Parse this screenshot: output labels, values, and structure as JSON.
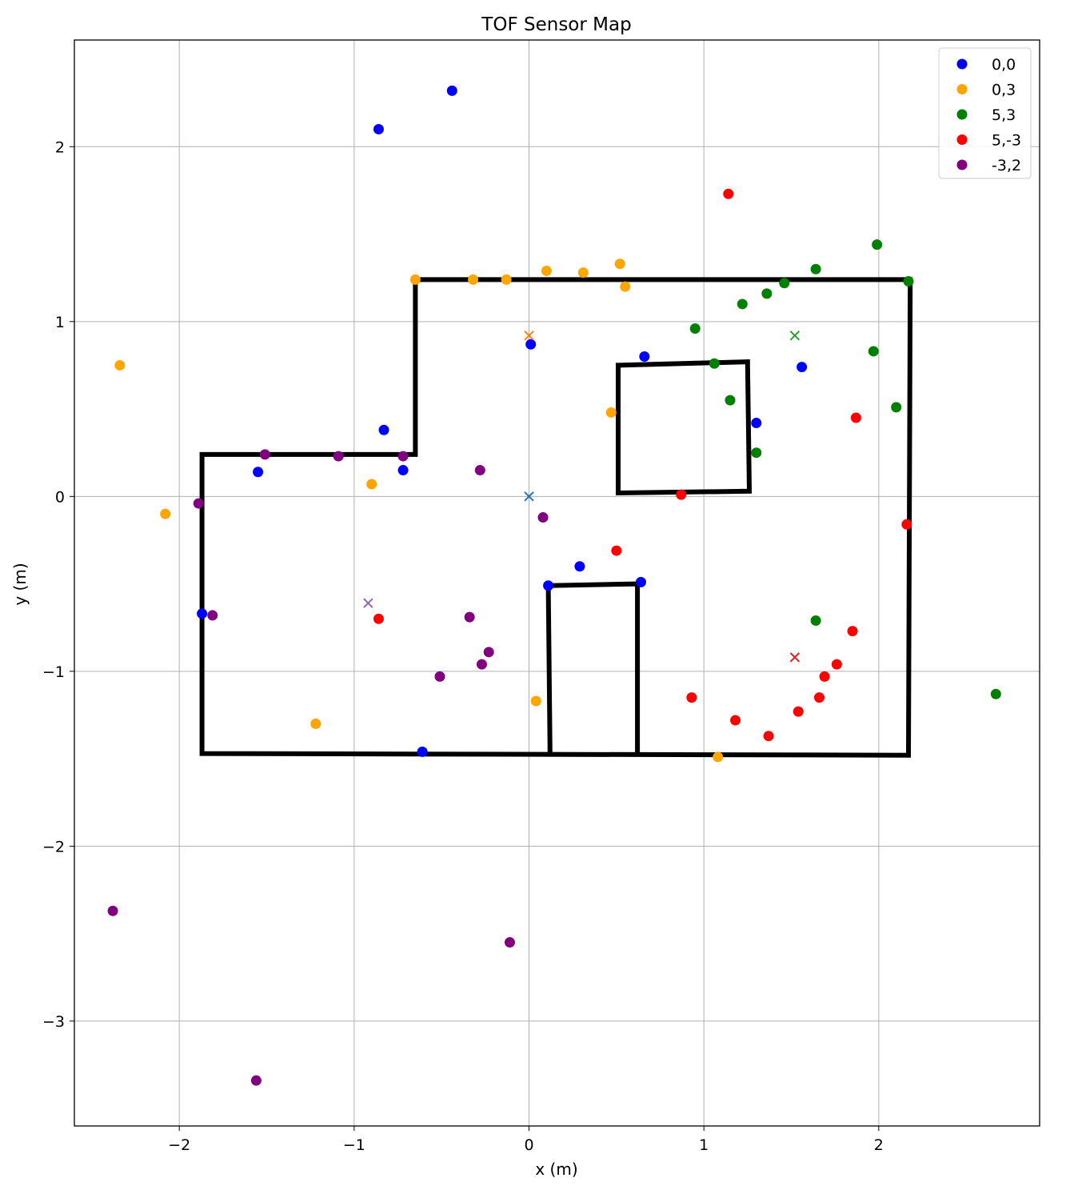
{
  "chart_data": {
    "type": "scatter",
    "title": "TOF Sensor Map",
    "xlabel": "x (m)",
    "ylabel": "y (m)",
    "xlim": [
      -2.6,
      2.92
    ],
    "ylim": [
      -3.6,
      2.61
    ],
    "xticks": [
      -2,
      -1,
      0,
      1,
      2
    ],
    "yticks": [
      2,
      1,
      0,
      -1,
      -2,
      -3
    ],
    "xtick_labels": [
      "−2",
      "−1",
      "0",
      "1",
      "2"
    ],
    "ytick_labels": [
      "2",
      "1",
      "0",
      "−1",
      "−2",
      "−3"
    ],
    "grid": true,
    "legend_position": "top-right",
    "walls": [
      [
        [
          -1.87,
          -1.47
        ],
        [
          -1.87,
          0.24
        ],
        [
          -0.65,
          0.24
        ],
        [
          -0.65,
          1.24
        ],
        [
          2.18,
          1.24
        ],
        [
          2.17,
          -1.48
        ],
        [
          -1.87,
          -1.47
        ]
      ],
      [
        [
          0.51,
          0.75
        ],
        [
          1.25,
          0.77
        ],
        [
          1.26,
          0.03
        ],
        [
          0.51,
          0.02
        ],
        [
          0.51,
          0.75
        ]
      ],
      [
        [
          0.12,
          -1.47
        ],
        [
          0.11,
          -0.51
        ],
        [
          0.62,
          -0.5
        ],
        [
          0.62,
          -1.47
        ]
      ]
    ],
    "series": [
      {
        "name": "0,0",
        "color": "#0000ff",
        "sensor": [
          0,
          0
        ],
        "sensor_color": "#1f77b4",
        "points": [
          [
            -0.44,
            2.32
          ],
          [
            -0.86,
            2.1
          ],
          [
            0.01,
            0.87
          ],
          [
            0.66,
            0.8
          ],
          [
            1.56,
            0.74
          ],
          [
            1.3,
            0.42
          ],
          [
            -0.83,
            0.38
          ],
          [
            -1.55,
            0.14
          ],
          [
            -0.72,
            0.15
          ],
          [
            0.29,
            -0.4
          ],
          [
            0.11,
            -0.51
          ],
          [
            0.64,
            -0.49
          ],
          [
            -1.87,
            -0.67
          ],
          [
            -0.61,
            -1.46
          ]
        ]
      },
      {
        "name": "0,3",
        "color": "#ffa500",
        "sensor": [
          0,
          0.92
        ],
        "sensor_color": "#ff7f0e",
        "points": [
          [
            -2.34,
            0.75
          ],
          [
            -2.08,
            -0.1
          ],
          [
            -0.9,
            0.07
          ],
          [
            -0.65,
            1.24
          ],
          [
            -0.32,
            1.24
          ],
          [
            -0.13,
            1.24
          ],
          [
            0.1,
            1.29
          ],
          [
            0.31,
            1.28
          ],
          [
            0.52,
            1.33
          ],
          [
            0.55,
            1.2
          ],
          [
            0.47,
            0.48
          ],
          [
            0.04,
            -1.17
          ],
          [
            -1.22,
            -1.3
          ],
          [
            1.08,
            -1.49
          ]
        ]
      },
      {
        "name": "5,3",
        "color": "#008000",
        "sensor": [
          1.52,
          0.92
        ],
        "sensor_color": "#2ca02c",
        "points": [
          [
            1.99,
            1.44
          ],
          [
            1.64,
            1.3
          ],
          [
            1.46,
            1.22
          ],
          [
            2.17,
            1.23
          ],
          [
            1.36,
            1.16
          ],
          [
            1.22,
            1.1
          ],
          [
            0.95,
            0.96
          ],
          [
            1.06,
            0.76
          ],
          [
            1.97,
            0.83
          ],
          [
            2.1,
            0.51
          ],
          [
            1.15,
            0.55
          ],
          [
            1.3,
            0.25
          ],
          [
            1.64,
            -0.71
          ],
          [
            2.67,
            -1.13
          ]
        ]
      },
      {
        "name": "5,-3",
        "color": "#ff0000",
        "sensor": [
          1.52,
          -0.92
        ],
        "sensor_color": "#d62728",
        "points": [
          [
            1.14,
            1.73
          ],
          [
            1.87,
            0.45
          ],
          [
            0.87,
            0.01
          ],
          [
            2.16,
            -0.16
          ],
          [
            0.5,
            -0.31
          ],
          [
            -0.86,
            -0.7
          ],
          [
            1.85,
            -0.77
          ],
          [
            1.76,
            -0.96
          ],
          [
            1.69,
            -1.03
          ],
          [
            1.66,
            -1.15
          ],
          [
            1.54,
            -1.23
          ],
          [
            0.93,
            -1.15
          ],
          [
            1.18,
            -1.28
          ],
          [
            1.37,
            -1.37
          ]
        ]
      },
      {
        "name": "-3,2",
        "color": "#800080",
        "sensor": [
          -0.92,
          -0.61
        ],
        "sensor_color": "#9467bd",
        "points": [
          [
            -1.51,
            0.24
          ],
          [
            -1.09,
            0.23
          ],
          [
            -0.72,
            0.23
          ],
          [
            -0.28,
            0.15
          ],
          [
            -1.89,
            -0.04
          ],
          [
            0.08,
            -0.12
          ],
          [
            -1.81,
            -0.68
          ],
          [
            -0.34,
            -0.69
          ],
          [
            -0.23,
            -0.89
          ],
          [
            -0.27,
            -0.96
          ],
          [
            -0.51,
            -1.03
          ],
          [
            -2.38,
            -2.37
          ],
          [
            -0.11,
            -2.55
          ],
          [
            -1.56,
            -3.34
          ]
        ]
      }
    ]
  }
}
